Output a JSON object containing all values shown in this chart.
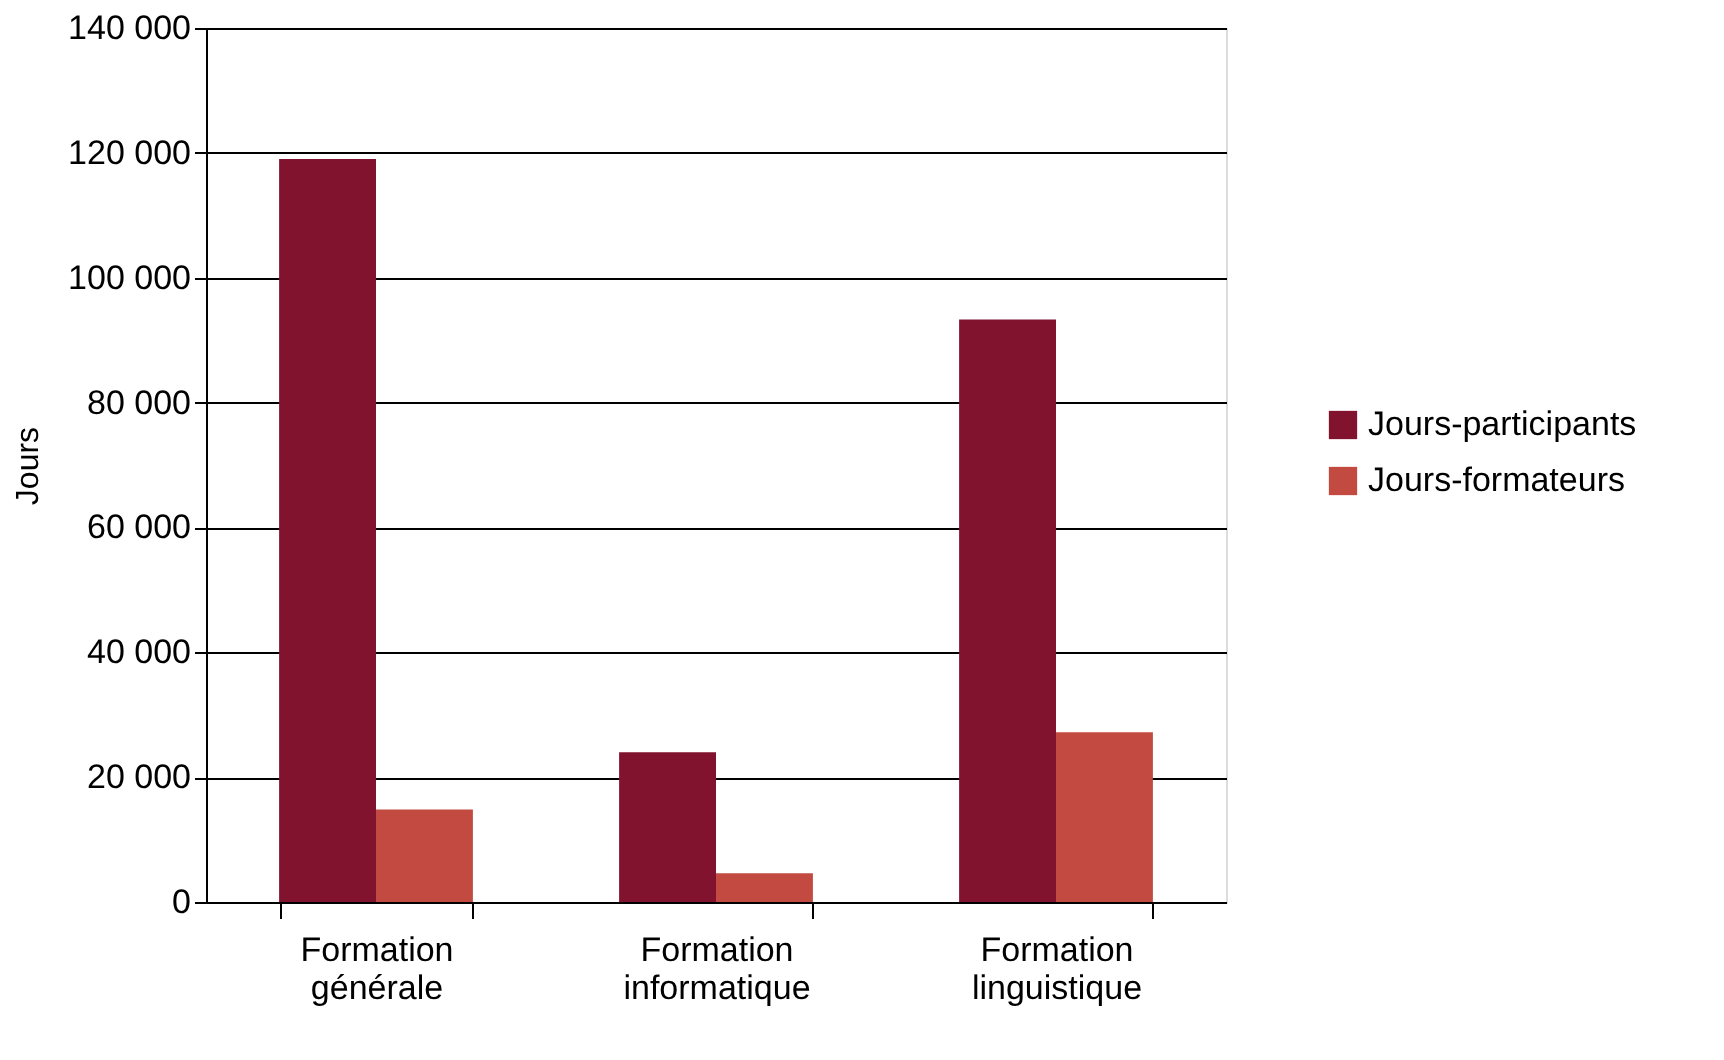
{
  "chart_data": {
    "type": "bar",
    "ylabel": "Jours",
    "categories": [
      "Formation générale",
      "Formation informatique",
      "Formation linguistique"
    ],
    "series": [
      {
        "name": "Jours-participants",
        "color": "#82132f",
        "values": [
          119000,
          24000,
          93300
        ]
      },
      {
        "name": "Jours-formateurs",
        "color": "#c24a40",
        "values": [
          14800,
          4600,
          27200
        ]
      }
    ],
    "ylim": [
      0,
      140000
    ],
    "yticks": [
      0,
      {
        "value": 20000,
        "label": "20 000"
      },
      {
        "value": 40000,
        "label": "40 000"
      },
      {
        "value": 60000,
        "label": "60 000"
      },
      {
        "value": 80000,
        "label": "80 000"
      },
      {
        "value": 100000,
        "label": "100 000"
      },
      {
        "value": 120000,
        "label": "120 000"
      },
      {
        "value": 140000,
        "label": "140 000"
      }
    ],
    "grid": "y",
    "legend": "right"
  }
}
